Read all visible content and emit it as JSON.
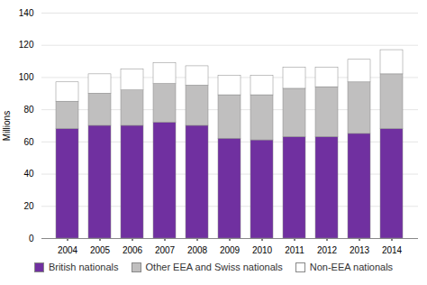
{
  "chart_data": {
    "type": "bar",
    "stacked": true,
    "categories": [
      "2004",
      "2005",
      "2006",
      "2007",
      "2008",
      "2009",
      "2010",
      "2011",
      "2012",
      "2013",
      "2014"
    ],
    "series": [
      {
        "name": "British nationals",
        "color": "#7030a0",
        "values": [
          68,
          70,
          70,
          72,
          70,
          62,
          61,
          63,
          63,
          65,
          68
        ]
      },
      {
        "name": "Other EEA and Swiss nationals",
        "color": "#c0bfbf",
        "values": [
          17,
          20,
          22,
          24,
          25,
          27,
          28,
          30,
          31,
          32,
          34
        ]
      },
      {
        "name": "Non-EEA nationals",
        "color": "#ffffff",
        "values": [
          12,
          12,
          13,
          13,
          12,
          12,
          12,
          13,
          12,
          14,
          15
        ]
      }
    ],
    "ylabel": "Millions",
    "ylim": [
      0,
      140
    ],
    "yticks": [
      0,
      20,
      40,
      60,
      80,
      100,
      120,
      140
    ],
    "grid": true,
    "legend": "bottom"
  }
}
